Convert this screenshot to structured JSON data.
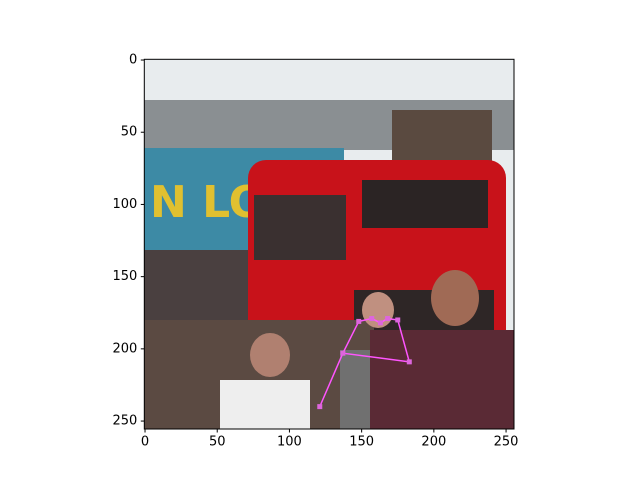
{
  "chart_data": {
    "type": "pose",
    "xlim": [
      -0.5,
      255.5
    ],
    "ylim": [
      255.5,
      -0.5
    ],
    "xticks": [
      0,
      50,
      100,
      150,
      200,
      250
    ],
    "yticks": [
      0,
      50,
      100,
      150,
      200,
      250
    ],
    "skeleton": {
      "color": "#ff55ff",
      "x": [
        148,
        137,
        183,
        175,
        null,
        137,
        121,
        null,
        148,
        157,
        163,
        168,
        175
      ],
      "y": [
        181,
        203,
        209,
        180,
        null,
        203,
        240,
        null,
        181,
        179,
        182,
        179,
        180
      ]
    },
    "keypoints": {
      "color": "#dd66dd",
      "x": [
        148,
        157,
        163,
        168,
        175,
        137,
        183,
        121
      ],
      "y": [
        181,
        179,
        182,
        179,
        180,
        203,
        209,
        240
      ]
    }
  }
}
